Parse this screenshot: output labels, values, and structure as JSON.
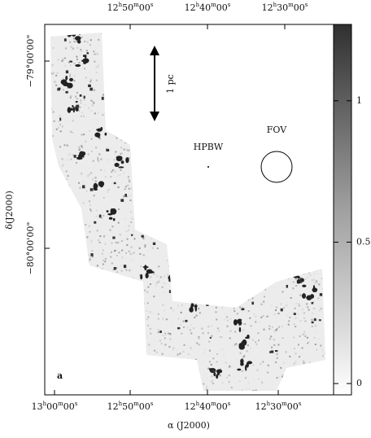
{
  "axes": {
    "x_label": "α (J2000)",
    "y_label": "δ(J2000)",
    "top_ticks": [
      "12h50m00s",
      "12h40m00s",
      "12h30m00s"
    ],
    "bottom_ticks": [
      "13h00m00s",
      "12h50m00s",
      "12h40m00s",
      "12h30m00s"
    ],
    "left_ticks": [
      "−79°00'00\"",
      "−80°00'00\""
    ]
  },
  "colorbar": {
    "lim": [
      -0.04,
      1.27
    ],
    "ticks": [
      0,
      0.5,
      1
    ]
  },
  "annotations": {
    "scale": "1 pc",
    "hpbw": "HPBW",
    "fov": "FOV",
    "panel": "a"
  }
}
